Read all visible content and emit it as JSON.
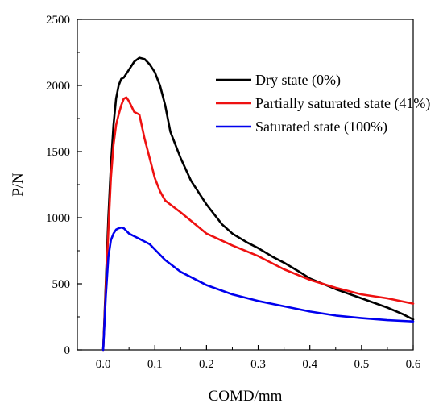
{
  "chart_data": {
    "type": "line",
    "title": "",
    "xlabel": "COMD/mm",
    "ylabel": "P/N",
    "xlim": [
      -0.05,
      0.6
    ],
    "ylim": [
      0,
      2500
    ],
    "xticks": [
      0.0,
      0.1,
      0.2,
      0.3,
      0.4,
      0.5,
      0.6
    ],
    "xtick_labels": [
      "0.0",
      "0.1",
      "0.2",
      "0.3",
      "0.4",
      "0.5",
      "0.6"
    ],
    "yticks": [
      0,
      500,
      1000,
      1500,
      2000,
      2500
    ],
    "ytick_labels": [
      "0",
      "500",
      "1000",
      "1500",
      "2000",
      "2500"
    ],
    "grid": false,
    "legend_position": "top-right",
    "series": [
      {
        "name": "Dry state  (0%)",
        "color": "#000000",
        "x": [
          0.0,
          0.005,
          0.01,
          0.015,
          0.02,
          0.025,
          0.03,
          0.035,
          0.04,
          0.05,
          0.06,
          0.07,
          0.08,
          0.09,
          0.1,
          0.11,
          0.12,
          0.13,
          0.15,
          0.17,
          0.2,
          0.23,
          0.25,
          0.28,
          0.3,
          0.33,
          0.35,
          0.38,
          0.4,
          0.45,
          0.5,
          0.55,
          0.58,
          0.6
        ],
        "y": [
          0,
          500,
          1000,
          1400,
          1700,
          1900,
          2000,
          2050,
          2060,
          2120,
          2180,
          2210,
          2200,
          2160,
          2100,
          2000,
          1850,
          1650,
          1450,
          1280,
          1100,
          950,
          880,
          810,
          770,
          700,
          660,
          590,
          540,
          460,
          390,
          320,
          270,
          230
        ]
      },
      {
        "name": "Partially saturated state  (41%)",
        "color": "#ee1111",
        "x": [
          0.0,
          0.005,
          0.01,
          0.015,
          0.02,
          0.025,
          0.03,
          0.035,
          0.04,
          0.045,
          0.05,
          0.06,
          0.07,
          0.08,
          0.09,
          0.1,
          0.11,
          0.12,
          0.13,
          0.15,
          0.2,
          0.25,
          0.3,
          0.35,
          0.4,
          0.45,
          0.5,
          0.55,
          0.6
        ],
        "y": [
          0,
          450,
          900,
          1300,
          1550,
          1700,
          1780,
          1850,
          1900,
          1910,
          1880,
          1800,
          1780,
          1600,
          1450,
          1300,
          1200,
          1130,
          1100,
          1040,
          880,
          790,
          710,
          610,
          530,
          470,
          420,
          390,
          350
        ]
      },
      {
        "name": "Saturated state   (100%)",
        "color": "#0000ee",
        "x": [
          0.0,
          0.005,
          0.01,
          0.015,
          0.02,
          0.025,
          0.03,
          0.035,
          0.04,
          0.05,
          0.06,
          0.07,
          0.08,
          0.09,
          0.1,
          0.12,
          0.15,
          0.2,
          0.25,
          0.3,
          0.35,
          0.4,
          0.45,
          0.5,
          0.55,
          0.6
        ],
        "y": [
          0,
          400,
          700,
          830,
          880,
          910,
          920,
          925,
          920,
          880,
          860,
          840,
          820,
          800,
          760,
          680,
          590,
          490,
          420,
          370,
          330,
          290,
          260,
          240,
          225,
          215
        ]
      }
    ]
  }
}
